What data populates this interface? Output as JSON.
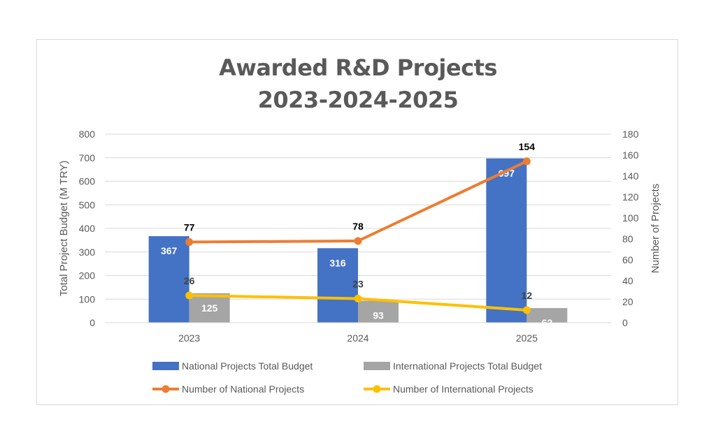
{
  "chart_data": {
    "type": "bar",
    "title_lines": [
      "Awarded R&D Projects",
      "2023-2024-2025"
    ],
    "categories": [
      "2023",
      "2024",
      "2025"
    ],
    "ylabel": "Total Project Budget (M TRY)",
    "y2label": "Number of Projects",
    "ylim": [
      0,
      800
    ],
    "yticks": [
      0,
      100,
      200,
      300,
      400,
      500,
      600,
      700,
      800
    ],
    "y2lim": [
      0,
      180
    ],
    "y2ticks": [
      0,
      20,
      40,
      60,
      80,
      100,
      120,
      140,
      160,
      180
    ],
    "grid": true,
    "legend_position": "bottom",
    "series": [
      {
        "name": "National Projects Total Budget",
        "kind": "bar",
        "axis": "left",
        "color": "#4472c4",
        "values": [
          367,
          316,
          697
        ]
      },
      {
        "name": "International Projects Total Budget",
        "kind": "bar",
        "axis": "left",
        "color": "#a5a5a5",
        "values": [
          125,
          93,
          62
        ]
      },
      {
        "name": "Number of National Projects",
        "kind": "line",
        "axis": "right",
        "color": "#ed7d31",
        "values": [
          77,
          78,
          154
        ]
      },
      {
        "name": "Number of International Projects",
        "kind": "line",
        "axis": "right",
        "color": "#ffc000",
        "values": [
          26,
          23,
          12
        ]
      }
    ]
  }
}
